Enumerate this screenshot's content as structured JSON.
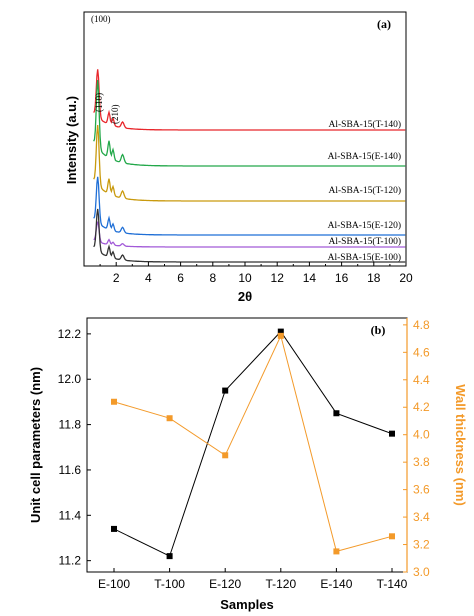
{
  "colors": {
    "axis": "#000000",
    "wall_axis": "#f39a2a",
    "unit_cell_series": "#000000",
    "wall_series": "#f39a2a"
  },
  "chart_data": [
    {
      "type": "line",
      "panel_label": "(a)",
      "xlabel": "2θ",
      "ylabel": "Intensity (a.u.)",
      "xlim": [
        0,
        20
      ],
      "x_ticks": [
        "2",
        "4",
        "6",
        "8",
        "10",
        "12",
        "14",
        "16",
        "18",
        "20"
      ],
      "peak_labels": [
        "(100)",
        "(110)",
        "(210)"
      ],
      "series": [
        {
          "name": "Al-SBA-15(T-140)",
          "color": "#e8262b"
        },
        {
          "name": "Al-SBA-15(E-140)",
          "color": "#23a84a"
        },
        {
          "name": "Al-SBA-15(T-120)",
          "color": "#c99a0e"
        },
        {
          "name": "Al-SBA-15(E-120)",
          "color": "#1f6fd6"
        },
        {
          "name": "Al-SBA-15(T-100)",
          "color": "#a25ad8"
        },
        {
          "name": "Al-SBA-15(E-100)",
          "color": "#333333"
        }
      ]
    },
    {
      "type": "line",
      "panel_label": "(b)",
      "xlabel": "Samples",
      "ylabel_left": "Unit cell parameters (nm)",
      "ylabel_right": "Wall thickness (nm)",
      "categories": [
        "E-100",
        "T-100",
        "E-120",
        "T-120",
        "E-140",
        "T-140"
      ],
      "ylim_left": [
        11.15,
        12.27
      ],
      "ylim_right": [
        3.0,
        4.85
      ],
      "y_ticks_left": [
        "11.2",
        "11.4",
        "11.6",
        "11.8",
        "12.0",
        "12.2"
      ],
      "y_ticks_right": [
        "3.0",
        "3.2",
        "3.4",
        "3.6",
        "3.8",
        "4.0",
        "4.2",
        "4.4",
        "4.6",
        "4.8"
      ],
      "series": [
        {
          "axis": "left",
          "color": "#000000",
          "values": [
            11.34,
            11.22,
            11.95,
            12.21,
            11.85,
            11.76
          ]
        },
        {
          "axis": "right",
          "color": "#f39a2a",
          "values": [
            4.24,
            4.12,
            3.85,
            4.72,
            3.15,
            3.26
          ]
        }
      ]
    }
  ]
}
